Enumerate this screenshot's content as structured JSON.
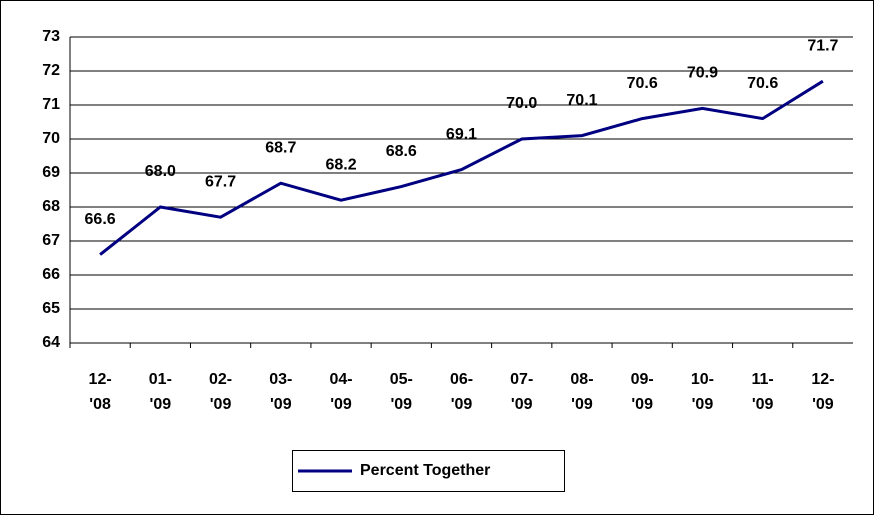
{
  "chart_data": {
    "type": "line",
    "categories": [
      "12-'08",
      "01-'09",
      "02-'09",
      "03-'09",
      "04-'09",
      "05-'09",
      "06-'09",
      "07-'09",
      "08-'09",
      "09-'09",
      "10-'09",
      "11-'09",
      "12-'09"
    ],
    "series": [
      {
        "name": "Percent Together",
        "color": "#000080",
        "values": [
          66.6,
          68.0,
          67.7,
          68.7,
          68.2,
          68.6,
          69.1,
          70.0,
          70.1,
          70.6,
          70.9,
          70.6,
          71.7
        ],
        "value_labels": [
          "66.6",
          "68.0",
          "67.7",
          "68.7",
          "68.2",
          "68.6",
          "69.1",
          "70.0",
          "70.1",
          "70.6",
          "70.9",
          "70.6",
          "71.7"
        ]
      }
    ],
    "ylim": [
      64,
      73
    ],
    "yticks": [
      64,
      65,
      66,
      67,
      68,
      69,
      70,
      71,
      72,
      73
    ],
    "grid": true,
    "legend": "bottom"
  }
}
